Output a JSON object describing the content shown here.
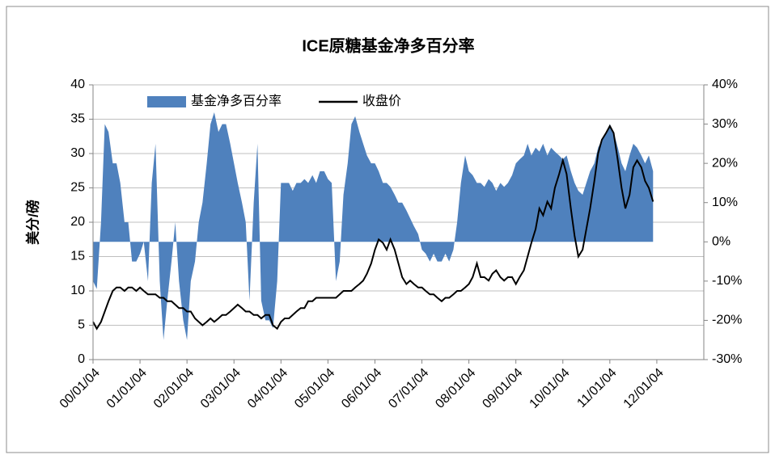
{
  "chart_data": {
    "type": "combo",
    "title": "ICE原糖基金净多百分率",
    "y_label": "美分/磅",
    "legend": "top",
    "grid": true,
    "x": [
      2000.0,
      2000.08,
      2000.17,
      2000.25,
      2000.33,
      2000.42,
      2000.5,
      2000.58,
      2000.67,
      2000.75,
      2000.83,
      2000.92,
      2001.0,
      2001.08,
      2001.17,
      2001.25,
      2001.33,
      2001.42,
      2001.5,
      2001.58,
      2001.67,
      2001.75,
      2001.83,
      2001.92,
      2002.0,
      2002.08,
      2002.17,
      2002.25,
      2002.33,
      2002.42,
      2002.5,
      2002.58,
      2002.67,
      2002.75,
      2002.83,
      2002.92,
      2003.0,
      2003.08,
      2003.17,
      2003.25,
      2003.33,
      2003.42,
      2003.5,
      2003.58,
      2003.67,
      2003.75,
      2003.83,
      2003.92,
      2004.0,
      2004.08,
      2004.17,
      2004.25,
      2004.33,
      2004.42,
      2004.5,
      2004.58,
      2004.67,
      2004.75,
      2004.83,
      2004.92,
      2005.0,
      2005.08,
      2005.17,
      2005.25,
      2005.33,
      2005.42,
      2005.5,
      2005.58,
      2005.67,
      2005.75,
      2005.83,
      2005.92,
      2006.0,
      2006.08,
      2006.17,
      2006.25,
      2006.33,
      2006.42,
      2006.5,
      2006.58,
      2006.67,
      2006.75,
      2006.83,
      2006.92,
      2007.0,
      2007.08,
      2007.17,
      2007.25,
      2007.33,
      2007.42,
      2007.5,
      2007.58,
      2007.67,
      2007.75,
      2007.83,
      2007.92,
      2008.0,
      2008.08,
      2008.17,
      2008.25,
      2008.33,
      2008.42,
      2008.5,
      2008.58,
      2008.67,
      2008.75,
      2008.83,
      2008.92,
      2009.0,
      2009.08,
      2009.17,
      2009.25,
      2009.33,
      2009.42,
      2009.5,
      2009.58,
      2009.67,
      2009.75,
      2009.83,
      2009.92,
      2010.0,
      2010.08,
      2010.17,
      2010.25,
      2010.33,
      2010.42,
      2010.5,
      2010.58,
      2010.67,
      2010.75,
      2010.83,
      2010.92,
      2011.0,
      2011.08,
      2011.17,
      2011.25,
      2011.33,
      2011.42,
      2011.5,
      2011.58,
      2011.67,
      2011.75,
      2011.83,
      2011.92
    ],
    "series": [
      {
        "name": "基金净多百分率",
        "type": "area",
        "axis": "y2",
        "color": "#4f81bd",
        "values": [
          -10,
          -12,
          5,
          30,
          28,
          20,
          20,
          15,
          5,
          5,
          -5,
          -5,
          -3,
          0,
          -10,
          15,
          25,
          -10,
          -25,
          -15,
          -5,
          5,
          -10,
          -20,
          -25,
          -10,
          -5,
          5,
          10,
          20,
          30,
          33,
          28,
          30,
          30,
          25,
          20,
          15,
          10,
          5,
          -15,
          10,
          25,
          -15,
          -20,
          -20,
          -22,
          -10,
          15,
          15,
          15,
          13,
          15,
          15,
          16,
          15,
          17,
          15,
          18,
          18,
          16,
          15,
          -10,
          -5,
          12,
          20,
          30,
          32,
          28,
          25,
          22,
          20,
          20,
          18,
          15,
          15,
          14,
          12,
          10,
          10,
          8,
          6,
          4,
          2,
          -2,
          -3,
          -5,
          -3,
          -5,
          -5,
          -3,
          -5,
          -2,
          5,
          15,
          22,
          18,
          17,
          15,
          15,
          14,
          16,
          15,
          13,
          15,
          14,
          15,
          17,
          20,
          21,
          22,
          25,
          22,
          24,
          23,
          25,
          22,
          24,
          23,
          22,
          21,
          22,
          18,
          15,
          13,
          12,
          15,
          18,
          20,
          24,
          26,
          28,
          30,
          28,
          24,
          20,
          18,
          22,
          25,
          24,
          22,
          20,
          22,
          18
        ]
      },
      {
        "name": "收盘价",
        "type": "line",
        "axis": "y",
        "color": "#000000",
        "values": [
          5.5,
          4.5,
          5.5,
          7,
          8.5,
          10,
          10.5,
          10.5,
          10,
          10.5,
          10.5,
          10,
          10.5,
          10,
          9.5,
          9.5,
          9.5,
          9,
          9,
          8.5,
          8.5,
          8,
          7.5,
          7.5,
          7,
          7,
          6,
          5.5,
          5,
          5.5,
          6,
          5.5,
          6,
          6.5,
          6.5,
          7,
          7.5,
          8,
          7.5,
          7,
          7,
          6.5,
          6.5,
          6,
          6.5,
          6.5,
          5,
          4.5,
          5.5,
          6,
          6,
          6.5,
          7,
          7.5,
          7.5,
          8.5,
          8.5,
          9,
          9,
          9,
          9,
          9,
          9,
          9.5,
          10,
          10,
          10,
          10.5,
          11,
          11.5,
          12.5,
          14,
          16,
          17.5,
          17,
          16,
          17.5,
          16,
          14,
          12,
          11,
          11.5,
          11,
          10.5,
          10.5,
          10,
          9.5,
          9.5,
          9,
          8.5,
          9,
          9,
          9.5,
          10,
          10,
          10.5,
          11,
          12,
          14,
          12,
          12,
          11.5,
          12.5,
          13,
          12,
          11.5,
          12,
          12,
          11,
          12,
          13,
          15,
          17,
          19,
          22,
          21,
          23,
          22,
          25,
          27,
          29,
          27,
          22,
          18,
          15,
          16,
          19,
          22,
          26,
          30,
          32,
          33,
          34,
          33,
          29,
          25,
          22,
          24,
          28,
          29,
          28,
          26,
          25,
          23
        ]
      }
    ],
    "xlim": [
      2000,
      2013
    ],
    "xticks": [
      {
        "value": 2000,
        "label": "00/01/04"
      },
      {
        "value": 2001,
        "label": "01/01/04"
      },
      {
        "value": 2002,
        "label": "02/01/04"
      },
      {
        "value": 2003,
        "label": "03/01/04"
      },
      {
        "value": 2004,
        "label": "04/01/04"
      },
      {
        "value": 2005,
        "label": "05/01/04"
      },
      {
        "value": 2006,
        "label": "06/01/04"
      },
      {
        "value": 2007,
        "label": "07/01/04"
      },
      {
        "value": 2008,
        "label": "08/01/04"
      },
      {
        "value": 2009,
        "label": "09/01/04"
      },
      {
        "value": 2010,
        "label": "10/01/04"
      },
      {
        "value": 2011,
        "label": "11/01/04"
      },
      {
        "value": 2012,
        "label": "12/01/04"
      }
    ],
    "ylim": [
      0,
      40
    ],
    "yticks": [
      0,
      5,
      10,
      15,
      20,
      25,
      30,
      35,
      40
    ],
    "y2lim": [
      -30,
      40
    ],
    "y2ticks": [
      {
        "value": -30,
        "label": "-30%"
      },
      {
        "value": -20,
        "label": "-20%"
      },
      {
        "value": -10,
        "label": "-10%"
      },
      {
        "value": 0,
        "label": "0%"
      },
      {
        "value": 10,
        "label": "10%"
      },
      {
        "value": 20,
        "label": "20%"
      },
      {
        "value": 30,
        "label": "30%"
      },
      {
        "value": 40,
        "label": "40%"
      }
    ]
  }
}
